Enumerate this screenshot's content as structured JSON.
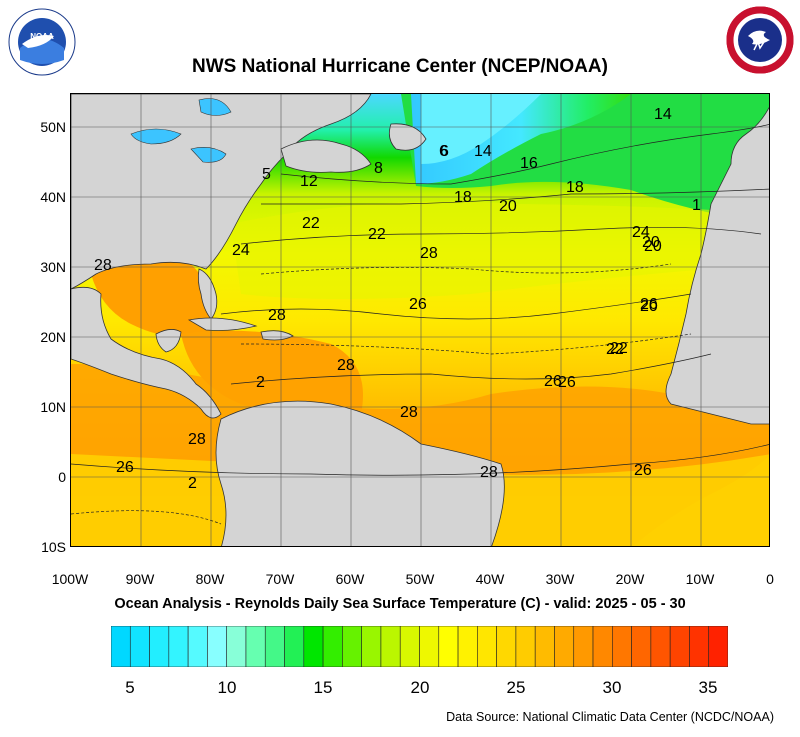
{
  "header": {
    "title": "NWS National Hurricane Center (NCEP/NOAA)",
    "left_logo": "noaa-logo",
    "right_logo": "national-weather-service-logo"
  },
  "map": {
    "lat_labels": [
      "50N",
      "40N",
      "30N",
      "20N",
      "10N",
      "0",
      "10S"
    ],
    "lon_labels": [
      "100W",
      "90W",
      "80W",
      "70W",
      "60W",
      "50W",
      "40W",
      "30W",
      "20W",
      "10W",
      "0"
    ],
    "contour_labels": [
      "14",
      "16",
      "18",
      "20",
      "22",
      "24",
      "26",
      "28",
      "8",
      "12",
      "6",
      "14",
      "18",
      "20",
      "22",
      "22",
      "24",
      "26",
      "26",
      "26",
      "28",
      "28",
      "28",
      "28",
      "28",
      "28",
      "26",
      "26",
      "20",
      "20",
      "22",
      "2",
      "2",
      "5",
      "6",
      "1"
    ]
  },
  "subtitle": "Ocean Analysis - Reynolds Daily Sea Surface Temperature (C) - valid: 2025 - 05 - 30",
  "colorbar": {
    "labels": [
      "5",
      "10",
      "15",
      "20",
      "25",
      "30",
      "35"
    ],
    "colors": [
      "#00d8ff",
      "#11e4ff",
      "#22eeff",
      "#33f4ff",
      "#55faff",
      "#88ffff",
      "#88ffd8",
      "#66ffb0",
      "#44f888",
      "#22f055",
      "#00e600",
      "#33ee00",
      "#66f200",
      "#99f600",
      "#bbf600",
      "#d8f800",
      "#eef800",
      "#ffff00",
      "#fff200",
      "#ffe600",
      "#ffd800",
      "#ffcc00",
      "#ffbb00",
      "#ffaa00",
      "#ff9900",
      "#ff8800",
      "#ff7700",
      "#ff6600",
      "#ff5500",
      "#ff4400",
      "#ff3300",
      "#ff2200"
    ]
  },
  "footer": {
    "source": "Data Source: National Climatic Data Center (NCDC/NOAA)"
  }
}
